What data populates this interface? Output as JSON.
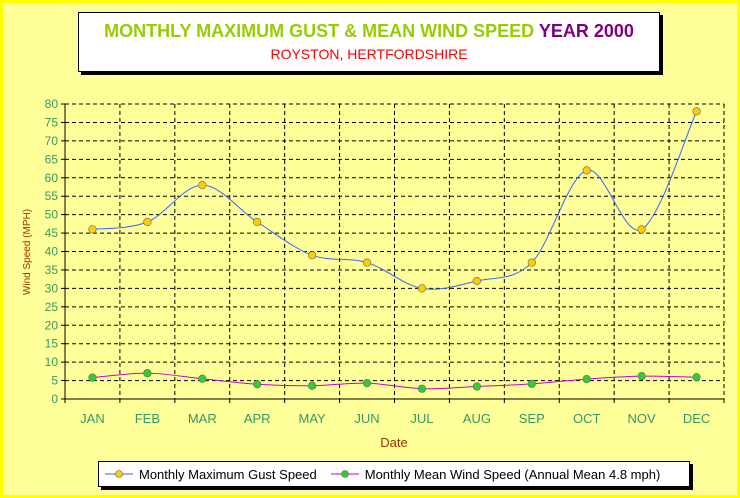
{
  "title": {
    "main": "MONTHLY MAXIMUM GUST & MEAN WIND SPEED",
    "year_label": "YEAR",
    "year": "2000",
    "subtitle": "ROYSTON, HERTFORDSHIRE"
  },
  "colors": {
    "background": "#ffff99",
    "border": "#ffff00",
    "axis_text": "#339966",
    "axis_title": "#993300",
    "gust_line": "#3366ff",
    "gust_marker": "#ffcc00",
    "mean_line": "#cc00cc",
    "mean_marker": "#33cc33"
  },
  "chart_data": {
    "type": "line",
    "categories": [
      "JAN",
      "FEB",
      "MAR",
      "APR",
      "MAY",
      "JUN",
      "JUL",
      "AUG",
      "SEP",
      "OCT",
      "NOV",
      "DEC"
    ],
    "xlabel": "Date",
    "ylabel": "Wind Speed (MPH)",
    "ylim": [
      0,
      80
    ],
    "ytick_step": 5,
    "grid": true,
    "smooth": true,
    "legend_position": "bottom",
    "series": [
      {
        "name": "Monthly Maximum Gust Speed",
        "values": [
          46,
          48,
          58,
          48,
          39,
          37,
          30,
          32,
          37,
          62,
          46,
          78
        ]
      },
      {
        "name": "Monthly Mean Wind Speed (Annual Mean 4.8 mph)",
        "values": [
          5.8,
          7.0,
          5.5,
          4.0,
          3.6,
          4.3,
          2.8,
          3.4,
          4.1,
          5.4,
          6.2,
          5.9
        ]
      }
    ]
  }
}
